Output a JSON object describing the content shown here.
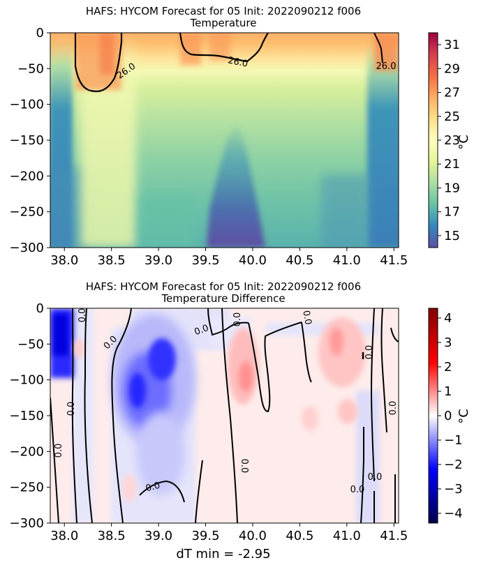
{
  "chart_data": [
    {
      "type": "heatmap",
      "title": "HAFS: HYCOM Forecast for 05 Init: 2022090212 f006",
      "subtitle": "Temperature",
      "xlabel": "",
      "ylabel": "",
      "xlim": [
        37.85,
        41.55
      ],
      "ylim": [
        -300,
        0
      ],
      "xticks": [
        "38.0",
        "38.5",
        "39.0",
        "39.5",
        "40.0",
        "40.5",
        "41.0",
        "41.5"
      ],
      "xtick_values": [
        38.0,
        38.5,
        39.0,
        39.5,
        40.0,
        40.5,
        41.0,
        41.5
      ],
      "yticks": [
        "0",
        "−50",
        "−100",
        "−150",
        "−200",
        "−250",
        "−300"
      ],
      "ytick_values": [
        0,
        -50,
        -100,
        -150,
        -200,
        -250,
        -300
      ],
      "colorbar": {
        "label": "°C",
        "colormap": "Spectral_r",
        "range": [
          14.0,
          32.0
        ],
        "ticks": [
          "15",
          "17",
          "19",
          "21",
          "23",
          "25",
          "27",
          "29",
          "31"
        ],
        "tick_values": [
          15,
          17,
          19,
          21,
          23,
          25,
          27,
          29,
          31
        ],
        "colors": [
          "#5e4fa2",
          "#3288bd",
          "#66c2a5",
          "#abdda4",
          "#e6f598",
          "#ffffbf",
          "#fee08b",
          "#fdae61",
          "#f46d43",
          "#d53e4f",
          "#9e0142"
        ]
      },
      "contour_level": 26.0,
      "contour_labels": [
        "26.0",
        "26.0",
        "26.0"
      ]
    },
    {
      "type": "heatmap",
      "title": "HAFS: HYCOM Forecast for 05 Init: 2022090212 f006",
      "subtitle": "Temperature Difference",
      "xlabel": "dT min = -2.95",
      "ylabel": "",
      "xlim": [
        37.85,
        41.55
      ],
      "ylim": [
        -300,
        0
      ],
      "xticks": [
        "38.0",
        "38.5",
        "39.0",
        "39.5",
        "40.0",
        "40.5",
        "41.0",
        "41.5"
      ],
      "xtick_values": [
        38.0,
        38.5,
        39.0,
        39.5,
        40.0,
        40.5,
        41.0,
        41.5
      ],
      "yticks": [
        "0",
        "−50",
        "−100",
        "−150",
        "−200",
        "−250",
        "−300"
      ],
      "ytick_values": [
        0,
        -50,
        -100,
        -150,
        -200,
        -250,
        -300
      ],
      "colorbar": {
        "label": "°C",
        "colormap": "seismic",
        "range": [
          -4.4,
          4.4
        ],
        "ticks": [
          "4",
          "3",
          "2",
          "1",
          "0",
          "−1",
          "−2",
          "−3",
          "−4"
        ],
        "tick_values": [
          4,
          3,
          2,
          1,
          0,
          -1,
          -2,
          -3,
          -4
        ],
        "colors": [
          "#00004c",
          "#0000ff",
          "#ffffff",
          "#ff0000",
          "#800000"
        ]
      },
      "contour_level": 0.0,
      "contour_labels": [
        "0.0",
        "0.0",
        "0.0",
        "0.0",
        "0.0",
        "0.0",
        "0.0",
        "0.0",
        "0.0",
        "0.0",
        "0.0",
        "0.0",
        "0.0"
      ]
    }
  ]
}
